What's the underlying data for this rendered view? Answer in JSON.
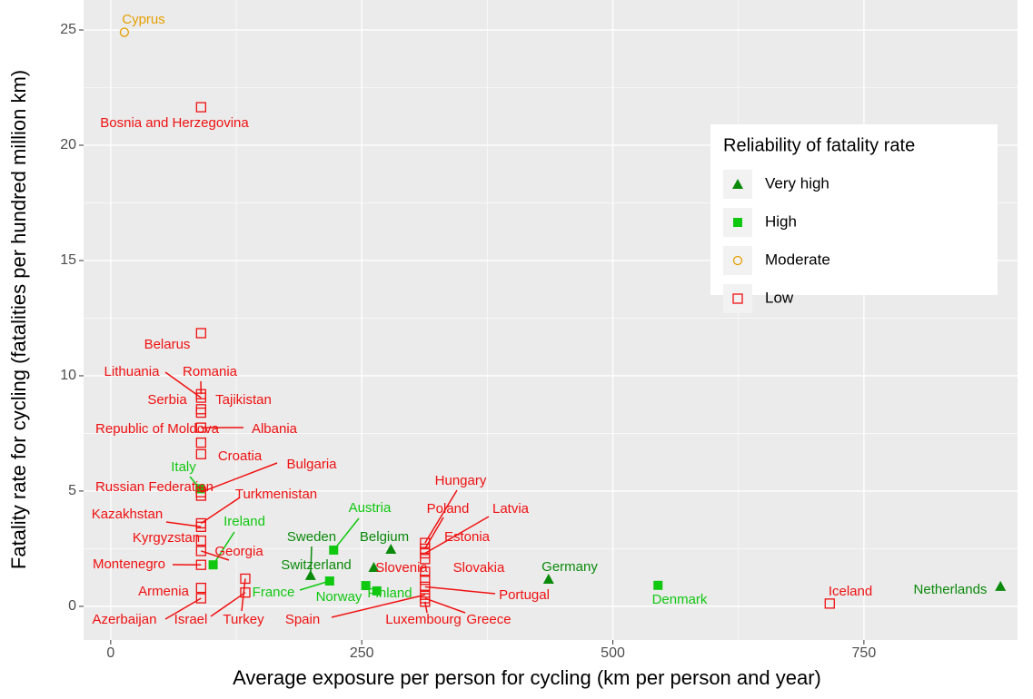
{
  "chart_data": {
    "type": "scatter",
    "xlabel": "Average exposure per person for cycling (km per person and year)",
    "ylabel": "Fatality rate for cycling (fatalities per hundred million km)",
    "xlim": [
      -27,
      903
    ],
    "ylim": [
      -1.46,
      26.3
    ],
    "xticks": [
      0,
      250,
      500,
      750
    ],
    "yticks": [
      0,
      5,
      10,
      15,
      20,
      25
    ],
    "grid": true,
    "legend": "top-right",
    "legend_title": "Reliability of fatality rate",
    "series": [
      {
        "name": "Very high",
        "color": "#0a8a0a",
        "marker": "triangle",
        "labels": [
          "Netherlands",
          "Germany",
          "Belgium",
          "Sweden",
          "Switzerland"
        ],
        "x": [
          886,
          436,
          279,
          199,
          262
        ],
        "values": [
          0.87,
          1.18,
          2.48,
          1.34,
          1.69
        ]
      },
      {
        "name": "High",
        "color": "#10c810",
        "marker": "square",
        "labels": [
          "Denmark",
          "Austria",
          "Italy",
          "Ireland",
          "France",
          "Norway",
          "Finland"
        ],
        "x": [
          545,
          222,
          89,
          102,
          218,
          254,
          265
        ],
        "values": [
          0.91,
          2.44,
          5.1,
          1.8,
          1.1,
          0.9,
          0.67
        ]
      },
      {
        "name": "Moderate",
        "color": "#e69f00",
        "marker": "circle",
        "labels": [
          "Cyprus"
        ],
        "x": [
          13.6
        ],
        "values": [
          24.9
        ]
      },
      {
        "name": "Low",
        "color": "#f01010",
        "marker": "open-square",
        "labels": [
          "Bosnia and Herzegovina",
          "Belarus",
          "Romania",
          "Lithuania",
          "Tajikistan",
          "Serbia",
          "Albania",
          "Republic of Moldova",
          "Croatia",
          "Bulgaria",
          "Russian Federation",
          "Turkmenistan",
          "Kazakhstan",
          "Kyrgyzstan",
          "Georgia",
          "Montenegro",
          "Armenia",
          "Azerbaijan",
          "Israel",
          "Turkey",
          "Hungary",
          "Poland",
          "Latvia",
          "Estonia",
          "Slovakia",
          "Slovenia",
          "Portugal",
          "Spain",
          "Greece",
          "Luxembourg",
          "Iceland"
        ],
        "x": [
          90,
          90,
          90,
          90,
          90,
          90,
          90,
          90,
          90,
          90,
          90,
          90,
          90,
          90,
          90,
          90,
          90,
          90,
          134,
          134,
          313,
          313,
          313,
          313,
          313,
          313,
          313,
          313,
          313,
          313,
          716
        ],
        "values": [
          21.65,
          11.85,
          9.2,
          9.05,
          8.55,
          8.4,
          7.75,
          7.1,
          6.6,
          4.95,
          4.8,
          3.6,
          3.45,
          2.85,
          2.4,
          1.8,
          0.8,
          0.35,
          0.6,
          1.2,
          2.75,
          2.5,
          2.3,
          2.05,
          1.5,
          1.15,
          0.85,
          0.5,
          0.35,
          0.2,
          0.12
        ]
      }
    ]
  }
}
